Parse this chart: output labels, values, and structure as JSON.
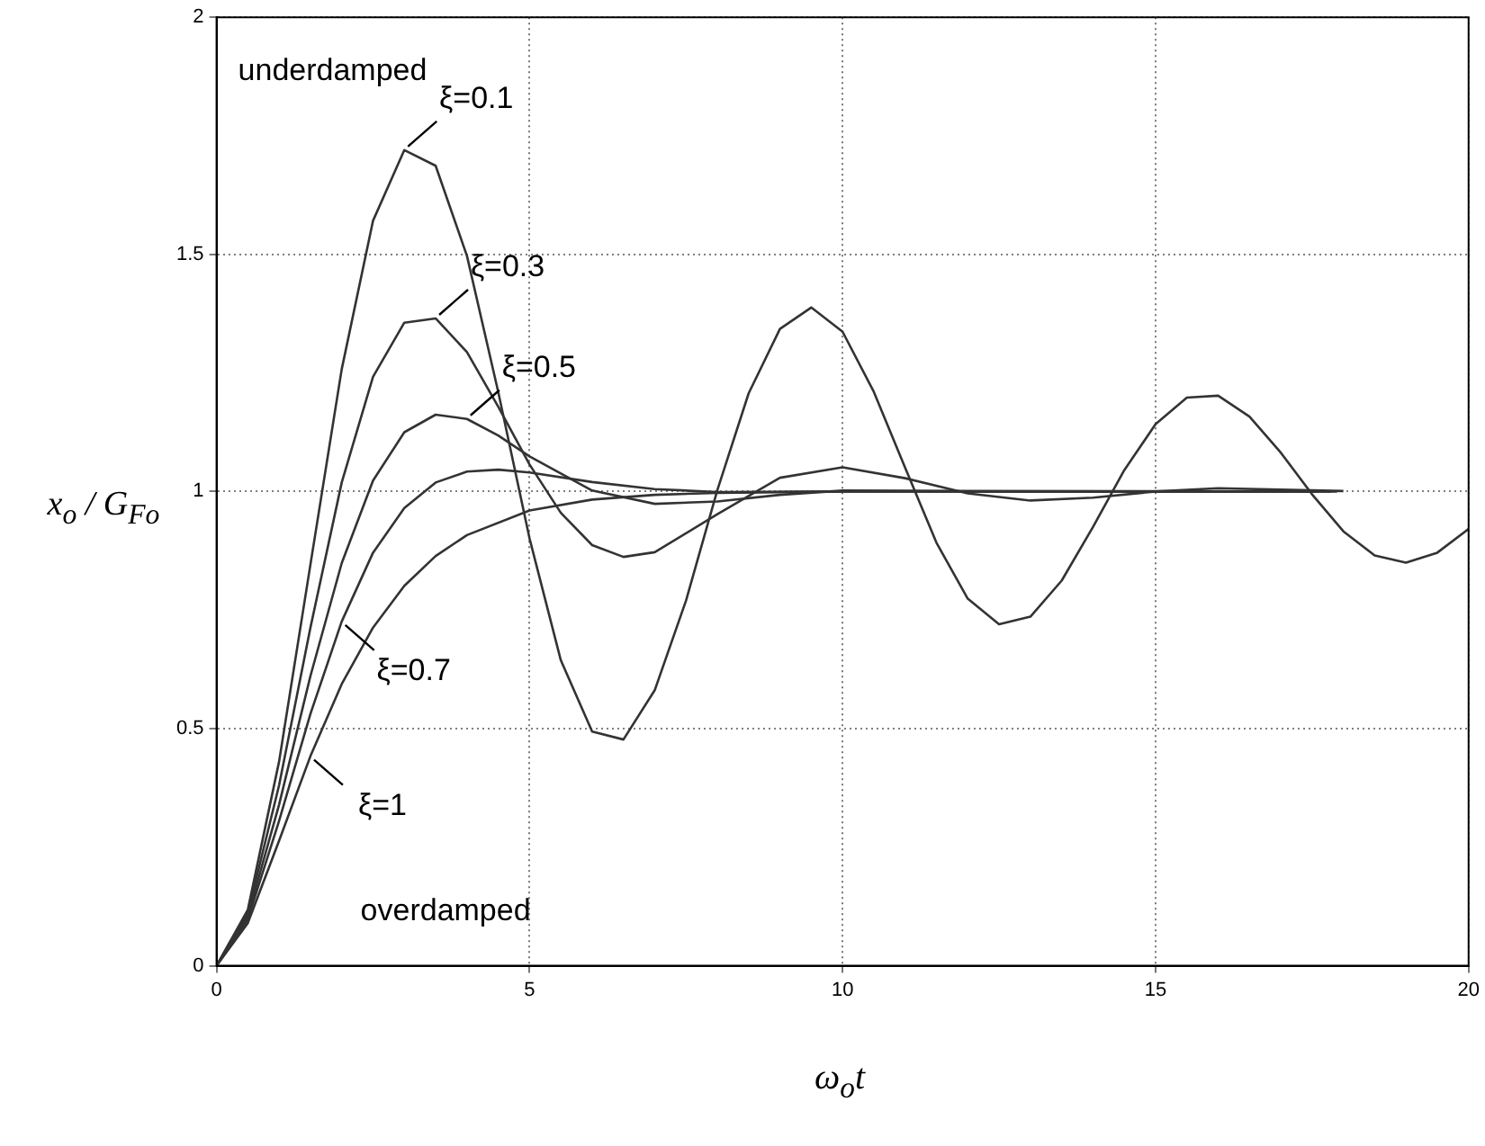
{
  "chart_data": {
    "type": "line",
    "xlabel": "ω$_{o}$t",
    "ylabel": "x$_{o}$ / G$_{Fo}$",
    "xlim": [
      0,
      20
    ],
    "ylim": [
      0,
      2
    ],
    "xticks": [
      0,
      5,
      10,
      15,
      20
    ],
    "yticks": [
      0,
      0.5,
      1,
      1.5,
      2
    ],
    "grid": true,
    "legend": false,
    "marker": "none",
    "line_style": "solid",
    "series": [
      {
        "color": "#333333",
        "x": [
          0,
          0.5,
          1,
          1.5,
          2,
          2.5,
          3,
          3.5,
          4,
          4.5,
          5,
          5.5,
          6,
          6.5,
          7,
          7.5,
          8,
          8.5,
          9,
          9.5,
          10,
          10.5,
          11,
          11.5,
          12,
          12.5,
          13,
          13.5,
          14,
          14.5,
          15,
          15.5,
          16,
          16.5,
          17,
          17.5,
          18,
          18.5,
          19,
          19.5,
          20
        ],
        "values": [
          0,
          0.118,
          0.431,
          0.846,
          1.258,
          1.571,
          1.72,
          1.687,
          1.497,
          1.21,
          0.901,
          0.644,
          0.494,
          0.477,
          0.581,
          0.77,
          1.003,
          1.207,
          1.343,
          1.388,
          1.337,
          1.21,
          1.05,
          0.892,
          0.774,
          0.72,
          0.736,
          0.812,
          0.925,
          1.045,
          1.142,
          1.198,
          1.202,
          1.158,
          1.082,
          0.994,
          0.916,
          0.865,
          0.85,
          0.871,
          0.921
        ]
      },
      {
        "color": "#333333",
        "x": [
          0,
          0.5,
          1,
          1.5,
          2,
          2.5,
          3,
          3.5,
          4,
          4.5,
          5,
          5.5,
          6,
          6.5,
          7,
          8,
          9,
          10,
          11,
          12,
          13,
          14,
          15,
          16,
          18
        ],
        "values": [
          0,
          0.111,
          0.381,
          0.713,
          1.019,
          1.242,
          1.356,
          1.365,
          1.294,
          1.179,
          1.057,
          0.955,
          0.887,
          0.862,
          0.872,
          0.952,
          1.029,
          1.051,
          1.028,
          0.996,
          0.981,
          0.987,
          1.0,
          1.007,
          1.001
        ]
      },
      {
        "color": "#333333",
        "x": [
          0,
          0.5,
          1,
          1.5,
          2,
          2.5,
          3,
          3.5,
          4,
          4.5,
          5,
          6,
          7,
          8,
          9,
          10,
          12,
          17.8
        ],
        "values": [
          0,
          0.104,
          0.34,
          0.611,
          0.849,
          1.023,
          1.125,
          1.162,
          1.153,
          1.118,
          1.074,
          1.002,
          0.974,
          0.979,
          0.993,
          1.002,
          1.001,
          1.0
        ]
      },
      {
        "color": "#333333",
        "x": [
          0,
          0.5,
          1,
          1.5,
          2,
          2.5,
          3,
          3.5,
          4,
          4.5,
          5,
          6,
          7,
          8,
          10,
          17.6
        ],
        "values": [
          0,
          0.098,
          0.306,
          0.531,
          0.726,
          0.871,
          0.965,
          1.019,
          1.042,
          1.046,
          1.04,
          1.02,
          1.005,
          0.999,
          1.0,
          1.0
        ]
      },
      {
        "color": "#333333",
        "x": [
          0,
          0.5,
          1,
          1.5,
          2,
          2.5,
          3,
          3.5,
          4,
          5,
          6,
          7,
          8,
          10,
          17.9
        ],
        "values": [
          0,
          0.09,
          0.264,
          0.442,
          0.594,
          0.713,
          0.801,
          0.864,
          0.908,
          0.96,
          0.983,
          0.993,
          0.997,
          1.0,
          1.0
        ]
      }
    ],
    "annotations": [
      "underdamped",
      {
        "text": "ξ=0.1",
        "x": 3,
        "y": 1.72
      },
      {
        "text": "ξ=0.3",
        "x": 3.5,
        "y": 1.365
      },
      {
        "text": "ξ=0.5",
        "x": 4,
        "y": 1.153
      },
      {
        "text": "ξ=0.7",
        "x": 2,
        "y": 0.726
      },
      {
        "text": "ξ=1",
        "x": 1.5,
        "y": 0.442
      },
      "overdamped"
    ]
  }
}
